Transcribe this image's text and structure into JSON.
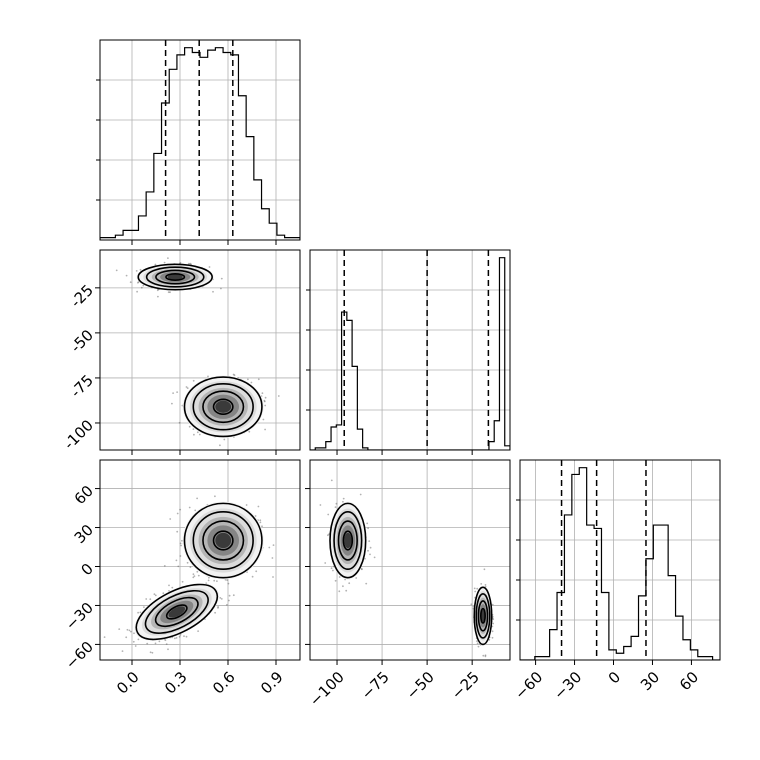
{
  "chart_data": [
    {
      "type": "histogram",
      "panel": "p1-marginal",
      "bin_edges_x": [
        -0.2,
        1.05
      ],
      "counts": [
        1,
        1,
        2,
        4,
        4,
        10,
        20,
        36,
        57,
        71,
        77,
        80,
        78,
        76,
        79,
        80,
        78,
        77,
        60,
        43,
        25,
        13,
        7,
        2,
        1,
        1
      ],
      "quantiles_x": [
        0.21,
        0.42,
        0.63
      ],
      "grid": true
    },
    {
      "type": "scatter-density",
      "panel": "p2-vs-p1",
      "xlim": [
        -0.2,
        1.05
      ],
      "ylim": [
        -115,
        -4
      ],
      "y_ticks": [
        "-25",
        "-50",
        "-75",
        "-100"
      ],
      "y_tick_values": [
        -25,
        -50,
        -75,
        -100
      ],
      "modes": [
        {
          "x": 0.27,
          "y": -19,
          "sx": 0.105,
          "sy": 3.2,
          "weight": 0.5
        },
        {
          "x": 0.57,
          "y": -91,
          "sx": 0.11,
          "sy": 7.5,
          "weight": 0.5
        }
      ],
      "grid": true
    },
    {
      "type": "histogram",
      "panel": "p2-marginal",
      "bin_edges_x": [
        -115,
        -4
      ],
      "counts": [
        0,
        1,
        1,
        4,
        11,
        12,
        66,
        62,
        40,
        10,
        1,
        0,
        0,
        0,
        0,
        0,
        0,
        0,
        0,
        0,
        0,
        0,
        0,
        0,
        0,
        0,
        0,
        0,
        0,
        0,
        0,
        0,
        0,
        0,
        4,
        14,
        92,
        2
      ],
      "quantiles_x": [
        -96,
        -50,
        -16
      ],
      "grid": true
    },
    {
      "type": "scatter-density",
      "panel": "p3-vs-p1",
      "xlim": [
        -0.2,
        1.05
      ],
      "ylim": [
        -72,
        82
      ],
      "x_ticks": [
        "0.0",
        "0.3",
        "0.6",
        "0.9"
      ],
      "x_tick_values": [
        0.0,
        0.3,
        0.6,
        0.9
      ],
      "y_ticks": [
        "60",
        "30",
        "0",
        "−30",
        "−60"
      ],
      "y_tick_values": [
        60,
        30,
        0,
        -30,
        -60
      ],
      "modes": [
        {
          "x": 0.28,
          "y": -35,
          "sx": 0.12,
          "sy": 10,
          "rho": 0.55,
          "weight": 0.5
        },
        {
          "x": 0.57,
          "y": 20,
          "sx": 0.11,
          "sy": 13,
          "weight": 0.5
        }
      ],
      "grid": true
    },
    {
      "type": "scatter-density",
      "panel": "p3-vs-p2",
      "xlim": [
        -115,
        -4
      ],
      "ylim": [
        -72,
        82
      ],
      "x_ticks": [
        "−100",
        "−75",
        "−50",
        "−25"
      ],
      "x_tick_values": [
        -100,
        -75,
        -50,
        -25
      ],
      "modes": [
        {
          "x": -94,
          "y": 20,
          "sx": 4.5,
          "sy": 13,
          "weight": 0.5
        },
        {
          "x": -19,
          "y": -38,
          "sx": 2.2,
          "sy": 10,
          "weight": 0.5
        }
      ],
      "grid": true
    },
    {
      "type": "histogram",
      "panel": "p3-marginal",
      "bin_edges_x": [
        -72,
        82
      ],
      "counts": [
        0,
        0,
        1,
        1,
        9,
        20,
        43,
        55,
        57,
        40,
        39,
        20,
        3,
        2,
        4,
        7,
        19,
        30,
        40,
        40,
        25,
        13,
        6,
        3,
        1,
        1,
        0
      ],
      "quantiles_x": [
        -40,
        -13,
        25
      ],
      "x_ticks": [
        "−60",
        "−30",
        "0",
        "30",
        "60"
      ],
      "x_tick_values": [
        -60,
        -30,
        0,
        30,
        60
      ],
      "grid": true
    }
  ]
}
